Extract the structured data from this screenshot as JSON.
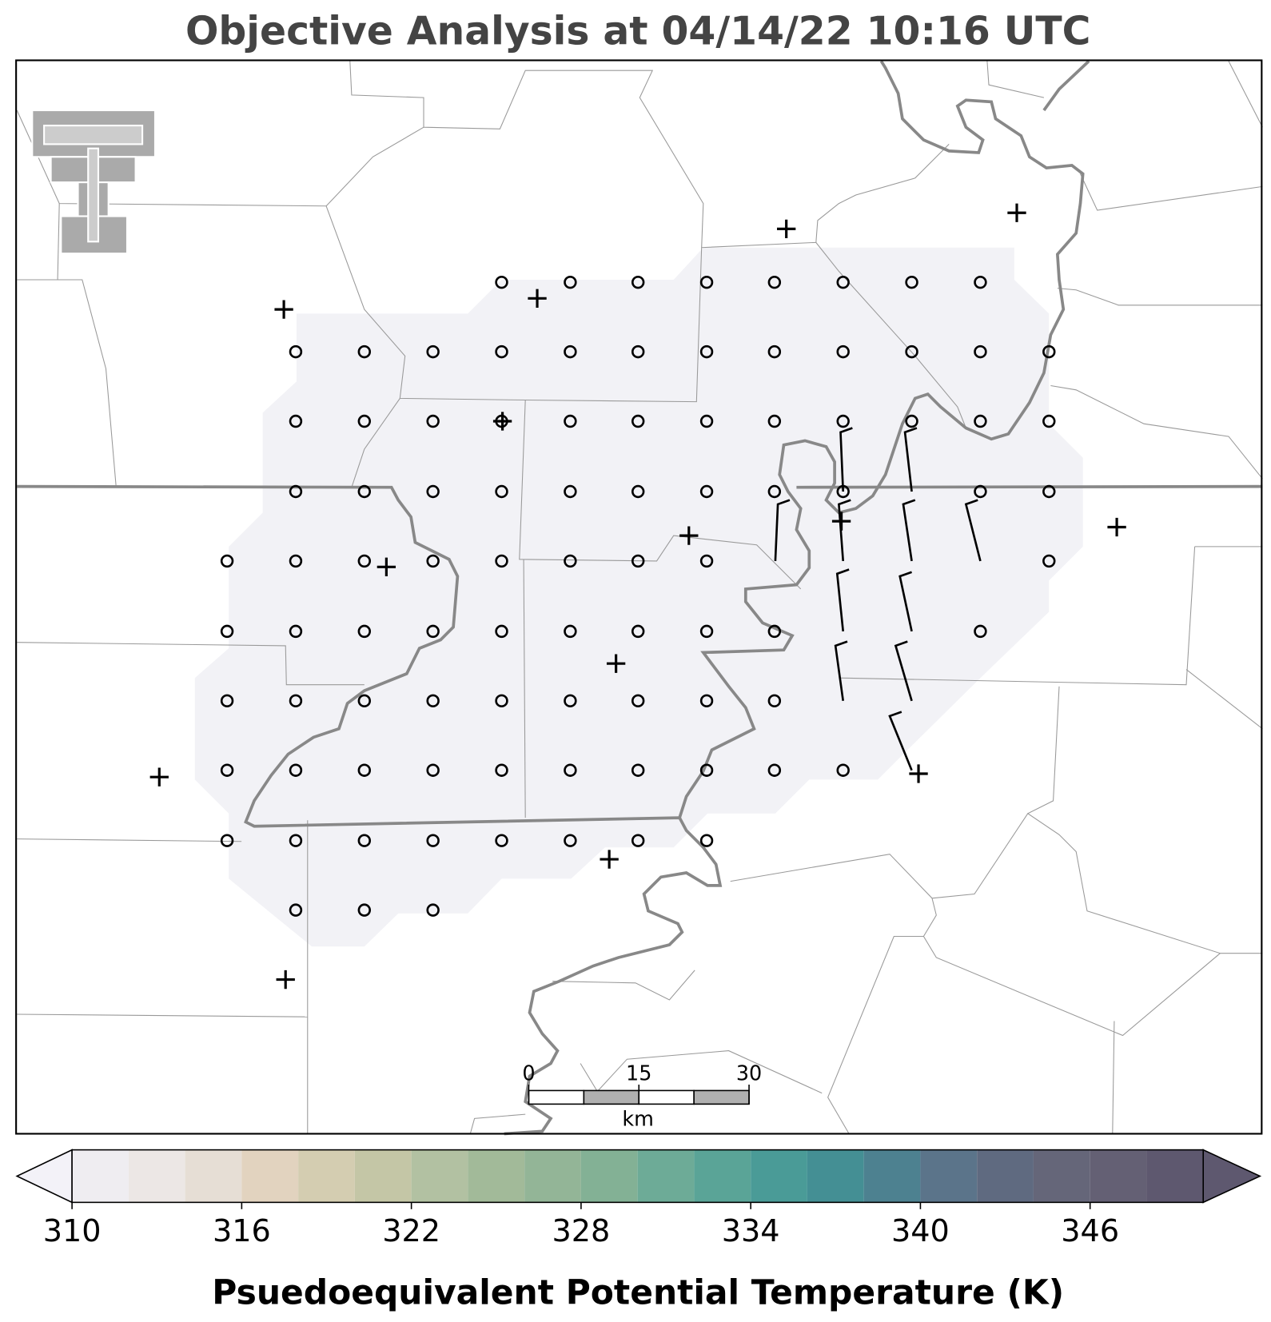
{
  "title": "Objective Analysis at 04/14/22 10:16 UTC",
  "scale_bar": {
    "ticks": [
      0,
      15,
      30
    ],
    "unit": "km"
  },
  "colorbar": {
    "label": "Psuedoequivalent Potential Temperature (K)",
    "levels": [
      310,
      312,
      314,
      316,
      318,
      320,
      322,
      324,
      326,
      328,
      330,
      332,
      334,
      336,
      338,
      340,
      342,
      344,
      346,
      348,
      350
    ],
    "colors": [
      "#efedf1",
      "#ece7e5",
      "#e6ded5",
      "#e2d3bf",
      "#d4cdb1",
      "#c4c6a6",
      "#b2c1a2",
      "#a2ba99",
      "#93b597",
      "#83b195",
      "#6dab97",
      "#5aa497",
      "#4a9b97",
      "#448f94",
      "#4d8190",
      "#5b748a",
      "#5f6a80",
      "#656679",
      "#646074",
      "#5e586f"
    ],
    "extend_colors": [
      "#f3f2f8",
      "#5e586f"
    ],
    "ticks": [
      310,
      316,
      322,
      328,
      334,
      340,
      346
    ]
  }
}
